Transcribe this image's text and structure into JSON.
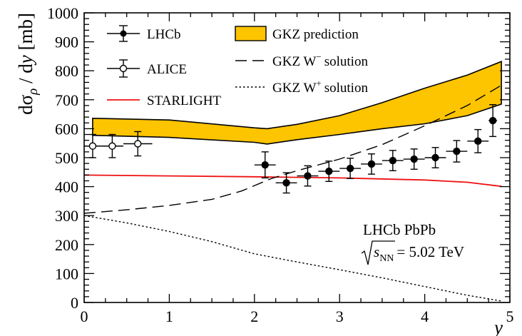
{
  "chart_data": {
    "type": "line",
    "xlabel": "y",
    "ylabel": "dσ_ρ / dy [mb]",
    "xlim": [
      0,
      5
    ],
    "ylim": [
      0,
      1000
    ],
    "x_ticks": [
      "0",
      "1",
      "2",
      "3",
      "4",
      "5"
    ],
    "y_ticks": [
      "0",
      "100",
      "200",
      "300",
      "400",
      "500",
      "600",
      "700",
      "800",
      "900",
      "1000"
    ],
    "legend_left": [
      "LHCb",
      "ALICE",
      "STARLIGHT"
    ],
    "legend_right": [
      "GKZ prediction",
      "GKZ W",
      "solution",
      "GKZ W",
      "solution"
    ],
    "legend_right_superscripts": [
      "−",
      "+"
    ],
    "annotation": {
      "line1": "LHCb PbPb",
      "s": "s",
      "s_sub": "NN",
      "value": "= 5.02 TeV"
    },
    "series": [
      {
        "name": "LHCb",
        "style": "filled-marker",
        "color": "#000000",
        "points": [
          {
            "x": 2.125,
            "y": 475,
            "xerr": 0.125,
            "yerr": 45
          },
          {
            "x": 2.375,
            "y": 413,
            "xerr": 0.125,
            "yerr": 35
          },
          {
            "x": 2.625,
            "y": 437,
            "xerr": 0.125,
            "yerr": 35
          },
          {
            "x": 2.875,
            "y": 453,
            "xerr": 0.125,
            "yerr": 35
          },
          {
            "x": 3.125,
            "y": 463,
            "xerr": 0.125,
            "yerr": 35
          },
          {
            "x": 3.375,
            "y": 478,
            "xerr": 0.125,
            "yerr": 35
          },
          {
            "x": 3.625,
            "y": 490,
            "xerr": 0.125,
            "yerr": 35
          },
          {
            "x": 3.875,
            "y": 495,
            "xerr": 0.125,
            "yerr": 35
          },
          {
            "x": 4.125,
            "y": 500,
            "xerr": 0.125,
            "yerr": 35
          },
          {
            "x": 4.375,
            "y": 522,
            "xerr": 0.125,
            "yerr": 37
          },
          {
            "x": 4.625,
            "y": 557,
            "xerr": 0.125,
            "yerr": 40
          },
          {
            "x": 4.8,
            "y": 628,
            "xerr": 0.05,
            "yerr": 55
          }
        ]
      },
      {
        "name": "ALICE",
        "style": "open-marker",
        "color": "#000000",
        "points": [
          {
            "x": 0.1,
            "y": 540,
            "xerr": 0.1,
            "yerr": 40
          },
          {
            "x": 0.33,
            "y": 540,
            "xerr": 0.13,
            "yerr": 40
          },
          {
            "x": 0.63,
            "y": 548,
            "xerr": 0.17,
            "yerr": 42
          }
        ]
      },
      {
        "name": "STARLIGHT",
        "style": "line",
        "color": "#ee1111",
        "x": [
          0,
          1,
          2,
          3,
          4,
          4.5,
          4.9
        ],
        "y": [
          440,
          437,
          434,
          430,
          423,
          415,
          401
        ]
      },
      {
        "name": "GKZ prediction",
        "style": "band",
        "color": "#fdc400",
        "x": [
          0.1,
          1.0,
          2.0,
          2.15,
          2.5,
          3.0,
          3.5,
          4.0,
          4.5,
          4.9
        ],
        "y_low": [
          577,
          570,
          553,
          547,
          562,
          580,
          600,
          617,
          645,
          685
        ],
        "y_high": [
          636,
          630,
          603,
          600,
          615,
          645,
          690,
          740,
          785,
          832
        ]
      },
      {
        "name": "GKZ W− solution",
        "style": "long-dash",
        "color": "#000000",
        "x": [
          0.0,
          0.5,
          1.0,
          1.5,
          1.85,
          2.2,
          2.5,
          3.0,
          3.5,
          4.0,
          4.5,
          4.9
        ],
        "y": [
          308,
          320,
          335,
          356,
          385,
          428,
          455,
          495,
          545,
          610,
          680,
          750
        ]
      },
      {
        "name": "GKZ W+ solution",
        "style": "dotted",
        "color": "#000000",
        "x": [
          0.0,
          0.5,
          1.0,
          1.5,
          2.0,
          2.5,
          3.0,
          3.5,
          4.0,
          4.5,
          4.9
        ],
        "y": [
          300,
          275,
          245,
          210,
          168,
          140,
          113,
          85,
          55,
          25,
          5
        ]
      }
    ]
  }
}
